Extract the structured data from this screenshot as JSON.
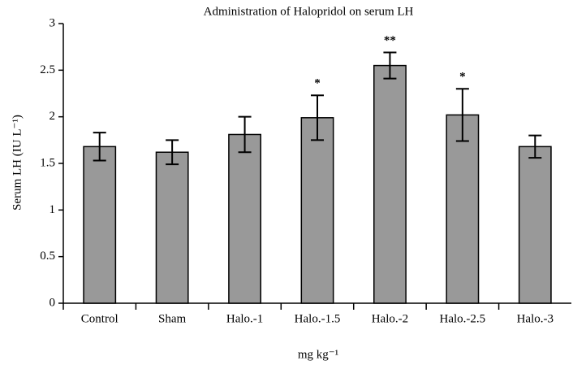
{
  "chart_data": {
    "type": "bar",
    "title": "Administration of Halopridol on serum LH",
    "ylabel": "Serum LH (IU L⁻¹)",
    "xlabel": "mg kg⁻¹",
    "categories": [
      "Control",
      "Sham",
      "Halo.-1",
      "Halo.-1.5",
      "Halo.-2",
      "Halo.-2.5",
      "Halo.-3"
    ],
    "values": [
      1.68,
      1.62,
      1.81,
      1.99,
      2.55,
      2.02,
      1.68
    ],
    "errors": [
      0.15,
      0.13,
      0.19,
      0.24,
      0.14,
      0.28,
      0.12
    ],
    "annotations": [
      null,
      null,
      null,
      "*",
      "**",
      "*",
      null
    ],
    "color": "#999999",
    "ylim": [
      0,
      3
    ],
    "yticks": [
      0,
      0.5,
      1,
      1.5,
      2,
      2.5,
      3
    ]
  }
}
